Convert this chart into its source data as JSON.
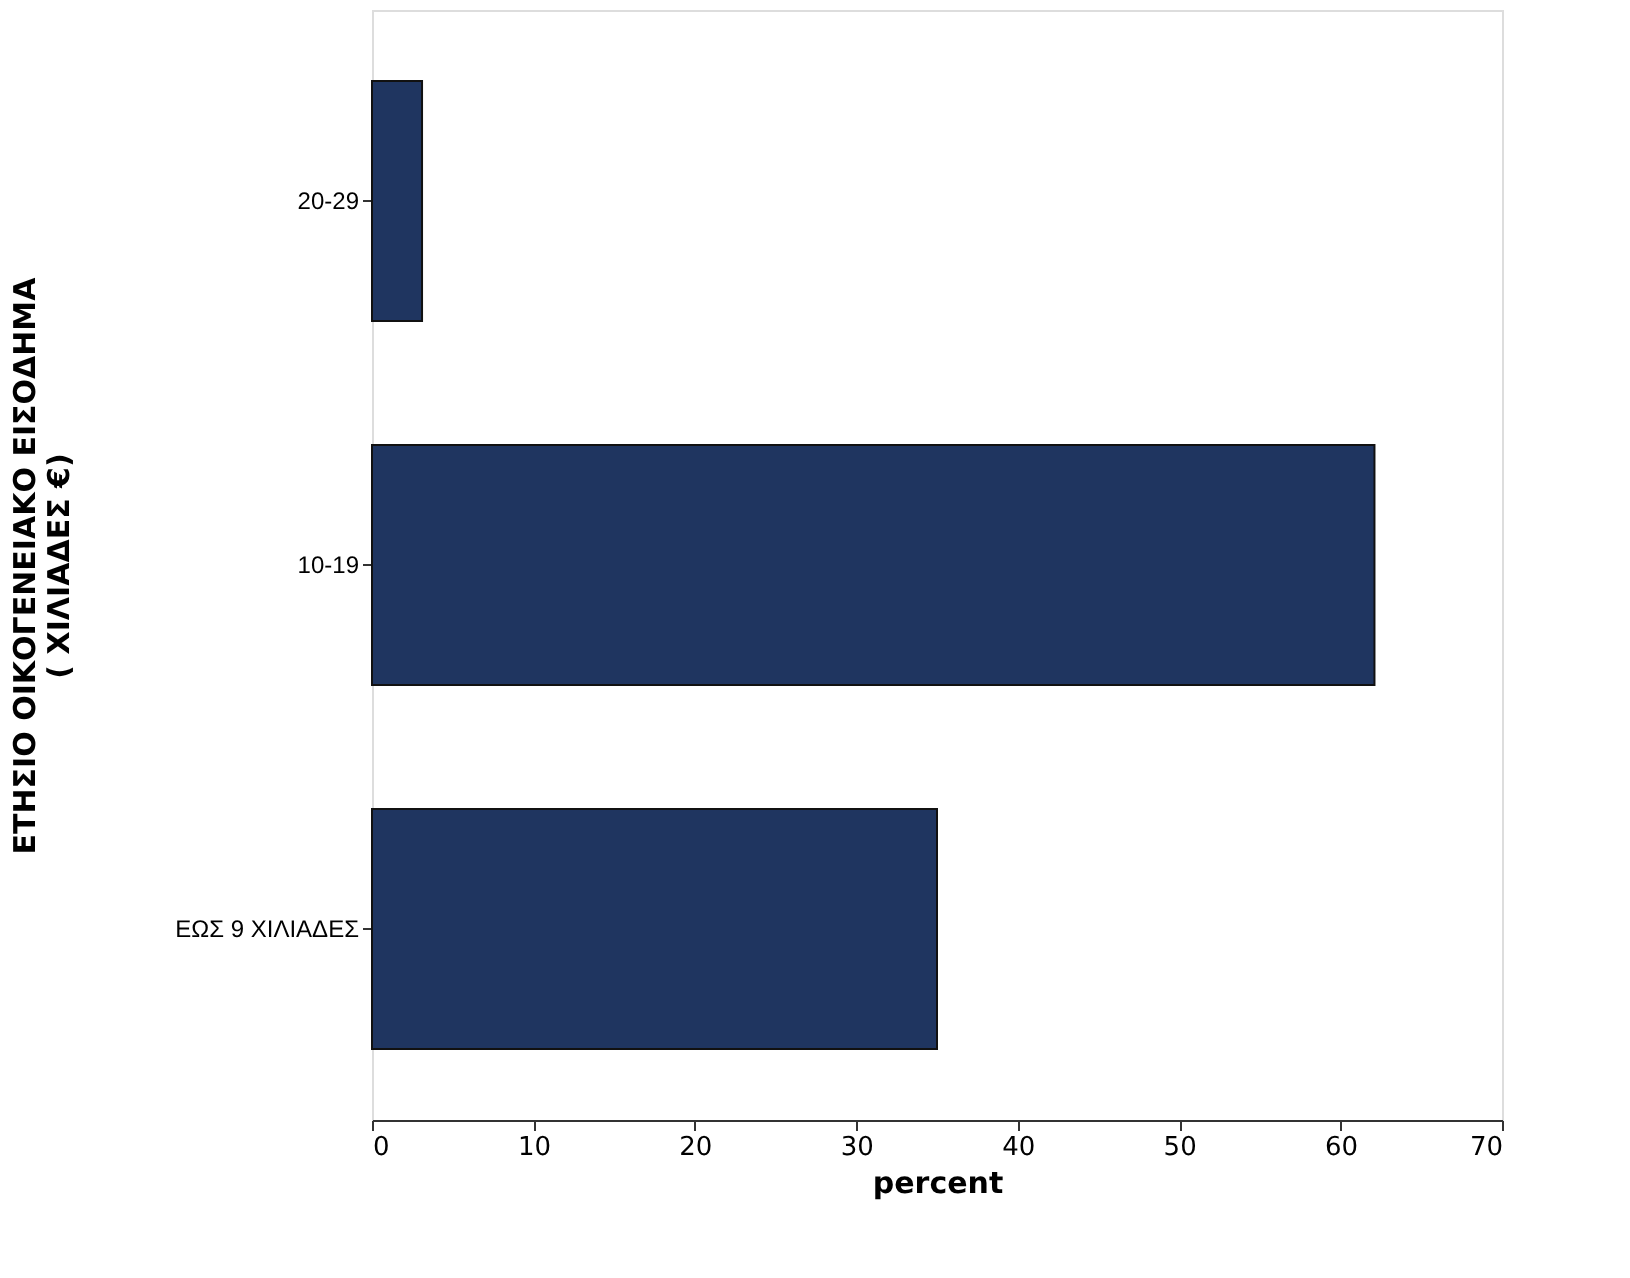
{
  "chart_data": {
    "type": "bar",
    "orientation": "horizontal",
    "xlabel": "percent",
    "ylabel": "ΕΤΗΣΙΟ ΟΙΚΟΓΕΝΕΙΑΚΟ ΕΙΣΟΔΗΜΑ\n( ΧΙΛΙΑΔΕΣ €)",
    "categories": [
      "20-29",
      "10-19",
      "ΕΩΣ 9 ΧΙΛΙΑΔΕΣ"
    ],
    "values": [
      3.1,
      62.1,
      35.0
    ],
    "color": "#1f3560",
    "xlim": [
      0,
      70
    ],
    "xticks": [
      0,
      10,
      20,
      30,
      40,
      50,
      60,
      70
    ],
    "grid": false
  }
}
